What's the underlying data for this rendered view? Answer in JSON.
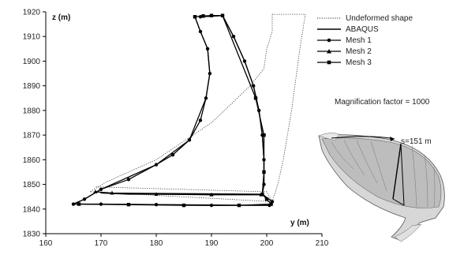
{
  "chart_data": {
    "type": "line",
    "xlabel": "y (m)",
    "ylabel": "z (m)",
    "xlim": [
      160,
      210
    ],
    "ylim": [
      1830,
      1920
    ],
    "xticks": [
      "160",
      "170",
      "180",
      "190",
      "200",
      "210"
    ],
    "yticks": [
      "1830",
      "1840",
      "1850",
      "1860",
      "1870",
      "1880",
      "1890",
      "1900",
      "1910",
      "1920"
    ],
    "legend_position": "right",
    "annotation": "Magnification factor = 1000",
    "inset_label": "s=151 m",
    "series": [
      {
        "name": "Undeformed shape",
        "style": "dotted",
        "points": [
          [
            201,
            1919
          ],
          [
            207,
            1919
          ],
          [
            206,
            1905
          ],
          [
            204.5,
            1880
          ],
          [
            203,
            1860
          ],
          [
            202,
            1850
          ],
          [
            201,
            1843
          ],
          [
            168,
            1847
          ],
          [
            171,
            1851
          ],
          [
            180,
            1860
          ],
          [
            190,
            1875
          ],
          [
            197,
            1890
          ],
          [
            199.5,
            1897
          ],
          [
            200,
            1905
          ],
          [
            201,
            1912
          ],
          [
            201,
            1919
          ]
        ],
        "close_path": [
          [
            201,
            1843
          ],
          [
            200,
            1847
          ],
          [
            169,
            1849
          ]
        ]
      },
      {
        "name": "ABAQUS",
        "style": "solid",
        "points": [
          [
            188,
            1918
          ],
          [
            192,
            1918.5
          ],
          [
            194,
            1910
          ],
          [
            196,
            1900
          ],
          [
            197.6,
            1890
          ],
          [
            198.6,
            1880
          ],
          [
            199.2,
            1870
          ],
          [
            199.5,
            1860
          ],
          [
            199.5,
            1850
          ],
          [
            199.2,
            1846
          ],
          [
            170,
            1846.5
          ],
          [
            175,
            1846
          ],
          [
            199.2,
            1846
          ],
          [
            201,
            1843
          ],
          [
            200.5,
            1841.5
          ],
          [
            165,
            1842
          ],
          [
            167,
            1844
          ],
          [
            170,
            1848
          ],
          [
            180,
            1858
          ],
          [
            186,
            1868
          ],
          [
            189,
            1885
          ],
          [
            189.7,
            1895
          ],
          [
            189.3,
            1905
          ],
          [
            188,
            1912
          ],
          [
            187,
            1918
          ]
        ]
      },
      {
        "name": "Mesh 1",
        "marker": "circle",
        "points": [
          [
            188,
            1918
          ],
          [
            192,
            1918.5
          ],
          [
            194,
            1910
          ],
          [
            196,
            1900
          ],
          [
            197.6,
            1890
          ],
          [
            198.6,
            1880
          ],
          [
            199.2,
            1870
          ],
          [
            199.5,
            1860
          ],
          [
            199.5,
            1850
          ],
          [
            199.2,
            1846
          ],
          [
            201,
            1843
          ],
          [
            200.5,
            1841.5
          ],
          [
            190,
            1841.5
          ],
          [
            180,
            1841.8
          ],
          [
            170,
            1842
          ],
          [
            165,
            1842
          ],
          [
            167,
            1844
          ],
          [
            170,
            1848
          ],
          [
            175,
            1852
          ],
          [
            180,
            1858
          ],
          [
            183,
            1862
          ],
          [
            186,
            1868
          ],
          [
            188,
            1876
          ],
          [
            189,
            1885
          ],
          [
            189.7,
            1895
          ],
          [
            189.3,
            1905
          ],
          [
            188,
            1912
          ],
          [
            187,
            1918
          ]
        ]
      },
      {
        "name": "Mesh 2",
        "marker": "triangle",
        "points": [
          [
            169,
            1847
          ],
          [
            172,
            1846.5
          ],
          [
            180,
            1846
          ],
          [
            190,
            1845.8
          ],
          [
            199,
            1845.8
          ]
        ]
      },
      {
        "name": "Mesh 3",
        "marker": "square",
        "points": [
          [
            187,
            1918
          ],
          [
            188.5,
            1918.3
          ],
          [
            190,
            1918.5
          ],
          [
            192,
            1918.5
          ],
          [
            198,
            1885
          ],
          [
            199.5,
            1870
          ],
          [
            199.5,
            1855
          ],
          [
            199.2,
            1846
          ],
          [
            200,
            1844
          ],
          [
            200.8,
            1842
          ],
          [
            195,
            1841.5
          ],
          [
            185,
            1841.5
          ],
          [
            175,
            1841.8
          ],
          [
            166,
            1842
          ]
        ]
      }
    ]
  }
}
